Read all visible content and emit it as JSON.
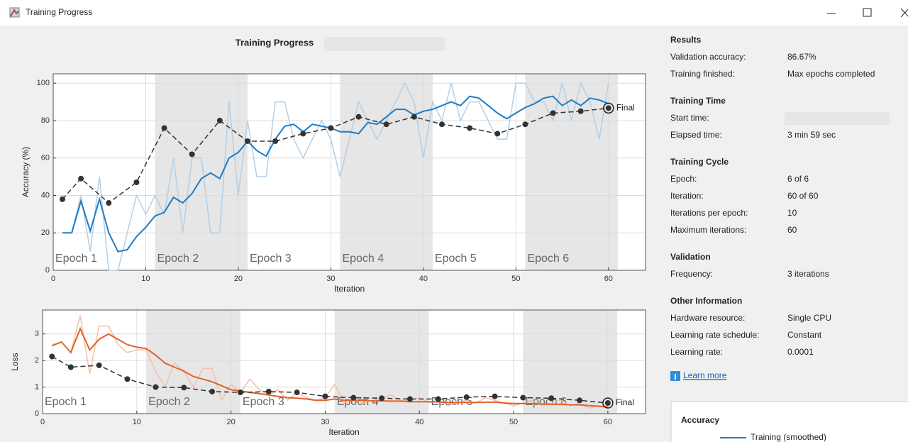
{
  "window": {
    "title": "Training Progress"
  },
  "chart_title": "Training Progress",
  "chart_data": [
    {
      "type": "line",
      "ylabel": "Accuracy (%)",
      "xlabel": "Iteration",
      "xlim": [
        0,
        64
      ],
      "ylim": [
        0,
        105
      ],
      "xticks": [
        0,
        10,
        20,
        30,
        40,
        50,
        60
      ],
      "yticks": [
        0,
        20,
        40,
        60,
        80,
        100
      ],
      "grid": true,
      "epochs": [
        {
          "label": "Epoch 1",
          "start": 1,
          "end": 11
        },
        {
          "label": "Epoch 2",
          "start": 11,
          "end": 21
        },
        {
          "label": "Epoch 3",
          "start": 21,
          "end": 31
        },
        {
          "label": "Epoch 4",
          "start": 31,
          "end": 41
        },
        {
          "label": "Epoch 5",
          "start": 41,
          "end": 51
        },
        {
          "label": "Epoch 6",
          "start": 51,
          "end": 61
        }
      ],
      "final_label": "Final",
      "series": [
        {
          "color": "#b3cfe6",
          "style": "raw",
          "x": [
            1,
            2,
            3,
            4,
            5,
            6,
            7,
            8,
            9,
            10,
            11,
            12,
            13,
            14,
            15,
            16,
            17,
            18,
            19,
            20,
            21,
            22,
            23,
            24,
            25,
            26,
            27,
            28,
            29,
            30,
            31,
            32,
            33,
            34,
            35,
            36,
            37,
            38,
            39,
            40,
            41,
            42,
            43,
            44,
            45,
            46,
            47,
            48,
            49,
            50,
            51,
            52,
            53,
            54,
            55,
            56,
            57,
            58,
            59,
            60
          ],
          "values": [
            20,
            20,
            40,
            10,
            50,
            0,
            0,
            20,
            40,
            30,
            40,
            30,
            60,
            20,
            60,
            60,
            20,
            20,
            90,
            40,
            80,
            50,
            50,
            90,
            90,
            70,
            60,
            70,
            80,
            70,
            50,
            70,
            90,
            80,
            70,
            80,
            90,
            100,
            90,
            60,
            90,
            80,
            100,
            80,
            90,
            90,
            80,
            70,
            70,
            100,
            100,
            90,
            90,
            80,
            100,
            80,
            100,
            90,
            70,
            100
          ]
        },
        {
          "name": "Training (smoothed)",
          "color": "#1f7cc4",
          "style": "smooth",
          "x": [
            1,
            2,
            3,
            4,
            5,
            6,
            7,
            8,
            9,
            10,
            11,
            12,
            13,
            14,
            15,
            16,
            17,
            18,
            19,
            20,
            21,
            22,
            23,
            24,
            25,
            26,
            27,
            28,
            29,
            30,
            31,
            32,
            33,
            34,
            35,
            36,
            37,
            38,
            39,
            40,
            41,
            42,
            43,
            44,
            45,
            46,
            47,
            48,
            49,
            50,
            51,
            52,
            53,
            54,
            55,
            56,
            57,
            58,
            59,
            60
          ],
          "values": [
            20,
            20,
            37,
            21,
            38,
            20,
            10,
            11,
            18,
            23,
            29,
            31,
            39,
            36,
            41,
            49,
            52,
            49,
            60,
            63,
            69,
            64,
            61,
            70,
            77,
            78,
            74,
            78,
            77,
            76,
            74,
            74,
            73,
            79,
            78,
            82,
            86,
            86,
            83,
            85,
            86,
            88,
            90,
            88,
            93,
            92,
            88,
            84,
            81,
            84,
            87,
            89,
            92,
            93,
            88,
            91,
            88,
            92,
            91,
            89
          ]
        },
        {
          "color": "#333333",
          "style": "validation",
          "x": [
            1,
            3,
            6,
            9,
            12,
            15,
            18,
            21,
            24,
            27,
            30,
            33,
            36,
            39,
            42,
            45,
            48,
            51,
            54,
            57,
            60
          ],
          "values": [
            38,
            49,
            36,
            47,
            76,
            62,
            80,
            69,
            69,
            73,
            76,
            82,
            78,
            82,
            78,
            76,
            73,
            78,
            84,
            85,
            86.67
          ]
        }
      ]
    },
    {
      "type": "line",
      "ylabel": "Loss",
      "xlabel": "Iteration",
      "xlim": [
        0,
        64
      ],
      "ylim": [
        0,
        3.9
      ],
      "xticks": [
        0,
        10,
        20,
        30,
        40,
        50,
        60
      ],
      "yticks": [
        0,
        1,
        2,
        3
      ],
      "grid": true,
      "epochs": [
        {
          "label": "Epoch 1",
          "start": 1,
          "end": 11
        },
        {
          "label": "Epoch 2",
          "start": 11,
          "end": 21
        },
        {
          "label": "Epoch 3",
          "start": 21,
          "end": 31
        },
        {
          "label": "Epoch 4",
          "start": 31,
          "end": 41
        },
        {
          "label": "Epoch 5",
          "start": 41,
          "end": 51
        },
        {
          "label": "Epoch 6",
          "start": 51,
          "end": 61
        }
      ],
      "final_label": "Final",
      "series": [
        {
          "color": "#f4c0a8",
          "style": "raw",
          "x": [
            1,
            2,
            3,
            4,
            5,
            6,
            7,
            8,
            9,
            10,
            11,
            12,
            13,
            14,
            15,
            16,
            17,
            18,
            19,
            20,
            21,
            22,
            23,
            24,
            25,
            26,
            27,
            28,
            29,
            30,
            31,
            32,
            33,
            34,
            35,
            36,
            37,
            38,
            39,
            40,
            41,
            42,
            43,
            44,
            45,
            46,
            47,
            48,
            49,
            50,
            51,
            52,
            53,
            54,
            55,
            56,
            57,
            58,
            59,
            60
          ],
          "values": [
            2.6,
            2.7,
            2.3,
            3.7,
            1.5,
            3.3,
            3.3,
            2.6,
            2.3,
            2.4,
            2.4,
            1.6,
            1.0,
            1.9,
            1.6,
            1.0,
            1.7,
            1.7,
            0.5,
            1.1,
            0.8,
            1.3,
            0.9,
            0.7,
            0.9,
            0.5,
            0.8,
            0.6,
            0.5,
            0.6,
            1.1,
            0.4,
            0.6,
            0.4,
            0.5,
            0.6,
            0.7,
            0.5,
            0.5,
            0.6,
            0.4,
            0.5,
            0.3,
            0.4,
            0.5,
            0.4,
            0.6,
            0.5,
            0.4,
            0.3,
            0.4,
            0.5,
            0.3,
            0.4,
            0.5,
            0.3,
            0.4,
            0.2,
            0.3,
            0.2
          ]
        },
        {
          "color": "#e0622a",
          "style": "smooth",
          "x": [
            1,
            2,
            3,
            4,
            5,
            6,
            7,
            8,
            9,
            10,
            11,
            12,
            13,
            14,
            15,
            16,
            17,
            18,
            19,
            20,
            21,
            22,
            23,
            24,
            25,
            26,
            27,
            28,
            29,
            30,
            31,
            32,
            33,
            34,
            35,
            36,
            37,
            38,
            39,
            40,
            41,
            42,
            43,
            44,
            45,
            46,
            47,
            48,
            49,
            50,
            51,
            52,
            53,
            54,
            55,
            56,
            57,
            58,
            59,
            60
          ],
          "values": [
            2.55,
            2.7,
            2.3,
            3.2,
            2.4,
            2.8,
            3.0,
            2.8,
            2.6,
            2.5,
            2.45,
            2.2,
            1.9,
            1.75,
            1.6,
            1.4,
            1.3,
            1.2,
            1.05,
            0.9,
            0.85,
            0.8,
            0.75,
            0.7,
            0.65,
            0.6,
            0.58,
            0.55,
            0.5,
            0.5,
            0.55,
            0.5,
            0.5,
            0.5,
            0.48,
            0.48,
            0.47,
            0.47,
            0.45,
            0.45,
            0.45,
            0.44,
            0.42,
            0.42,
            0.42,
            0.42,
            0.43,
            0.43,
            0.4,
            0.38,
            0.38,
            0.38,
            0.36,
            0.35,
            0.35,
            0.33,
            0.33,
            0.3,
            0.28,
            0.25
          ]
        },
        {
          "color": "#333333",
          "style": "validation",
          "x": [
            1,
            3,
            6,
            9,
            12,
            15,
            18,
            21,
            24,
            27,
            30,
            33,
            36,
            39,
            42,
            45,
            48,
            51,
            54,
            57,
            60
          ],
          "values": [
            2.15,
            1.75,
            1.82,
            1.3,
            1.0,
            0.98,
            0.83,
            0.8,
            0.83,
            0.8,
            0.65,
            0.6,
            0.58,
            0.55,
            0.55,
            0.62,
            0.65,
            0.6,
            0.58,
            0.5,
            0.4
          ]
        }
      ]
    }
  ],
  "panel": {
    "sections": [
      {
        "heading": "Results",
        "rows": [
          {
            "label": "Validation accuracy:",
            "value": "86.67%"
          },
          {
            "label": "Training finished:",
            "value": "Max epochs completed"
          }
        ]
      },
      {
        "heading": "Training Time",
        "rows": [
          {
            "label": "Start time:"
          },
          {
            "label": "Elapsed time:",
            "value": "3 min 59 sec"
          }
        ]
      },
      {
        "heading": "Training Cycle",
        "rows": [
          {
            "label": "Epoch:",
            "value": "6 of 6"
          },
          {
            "label": "Iteration:",
            "value": "60 of 60"
          },
          {
            "label": "Iterations per epoch:",
            "value": "10"
          },
          {
            "label": "Maximum iterations:",
            "value": "60"
          }
        ]
      },
      {
        "heading": "Validation",
        "rows": [
          {
            "label": "Frequency:",
            "value": "3 iterations"
          }
        ]
      },
      {
        "heading": "Other Information",
        "rows": [
          {
            "label": "Hardware resource:",
            "value": "Single CPU"
          },
          {
            "label": "Learning rate schedule:",
            "value": "Constant"
          },
          {
            "label": "Learning rate:",
            "value": "0.0001"
          }
        ]
      }
    ],
    "link": "Learn more",
    "legend_title": "Accuracy"
  }
}
